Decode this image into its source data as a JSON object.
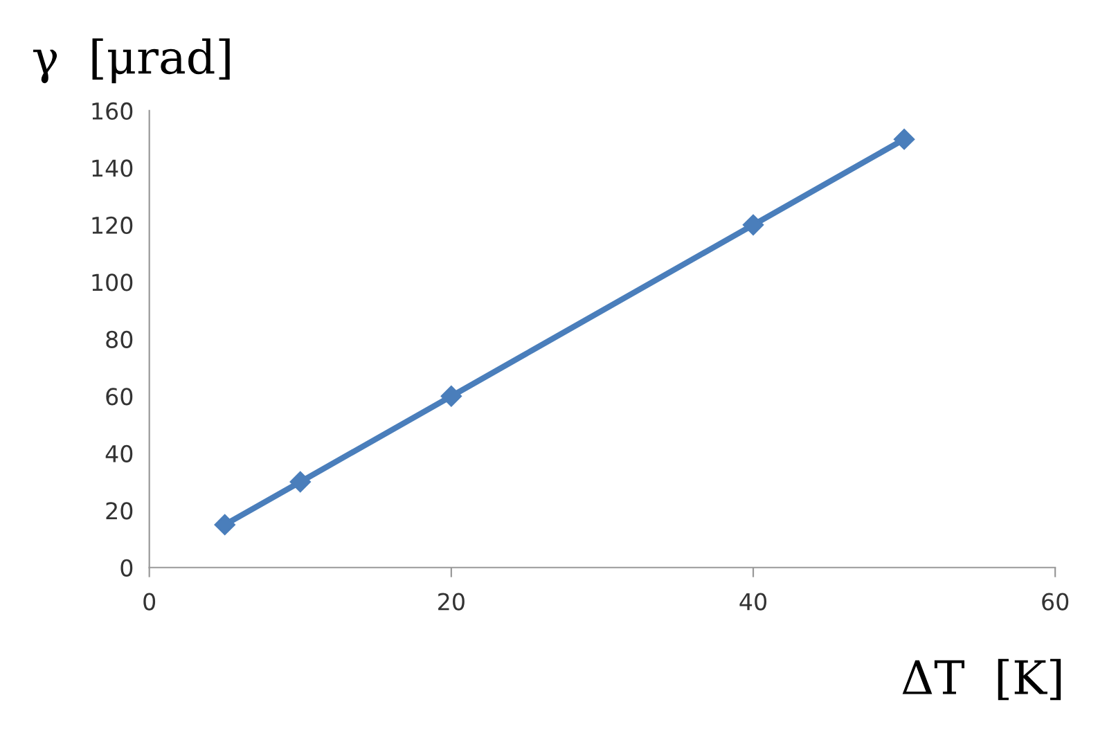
{
  "chart_data": {
    "type": "line",
    "xlabel": "ΔT  [K]",
    "ylabel": "γ  [μrad]",
    "x": [
      5,
      10,
      20,
      40,
      50
    ],
    "series": [
      {
        "color": "#4a7ebb",
        "values": [
          15,
          30,
          60,
          120,
          150
        ]
      }
    ],
    "xlim": [
      0,
      60
    ],
    "xticks": [
      0,
      20,
      40,
      60
    ],
    "ylim": [
      0,
      160
    ],
    "yticks": [
      0,
      20,
      40,
      60,
      80,
      100,
      120,
      140,
      160
    ],
    "marker": "diamond",
    "line_style": "solid",
    "grid": false,
    "legend": false
  }
}
